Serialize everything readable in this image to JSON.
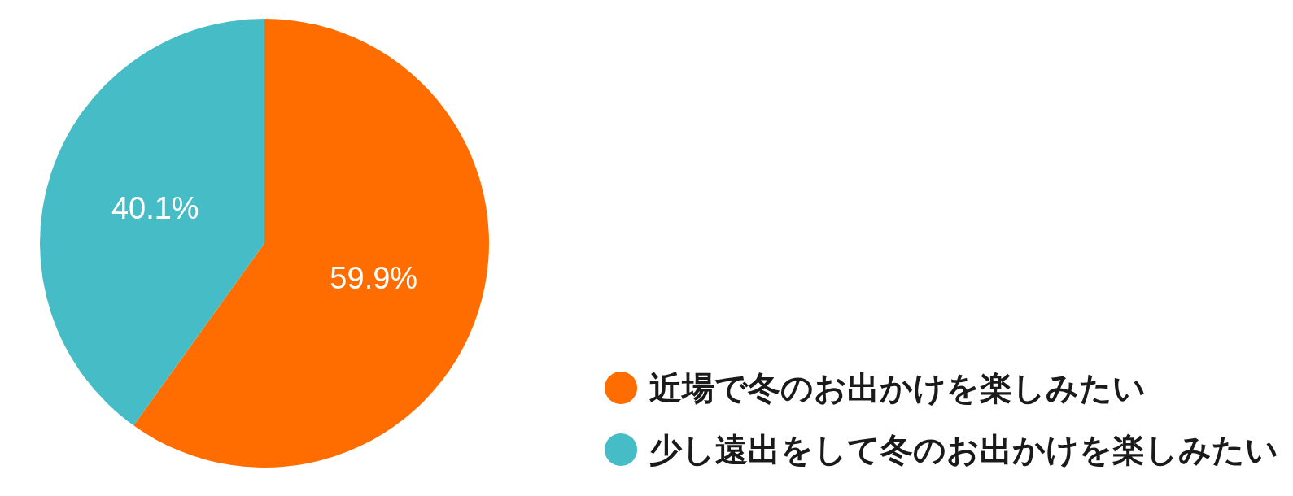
{
  "chart_data": {
    "type": "pie",
    "categories": [
      "近場で冬のお出かけを楽しみたい",
      "少し遠出をして冬のお出かけを楽しみたい"
    ],
    "values": [
      59.9,
      40.1
    ],
    "value_labels": [
      "59.9%",
      "40.1%"
    ],
    "colors": [
      "#ff6d01",
      "#46bdc6"
    ],
    "legend": "bottom right"
  }
}
